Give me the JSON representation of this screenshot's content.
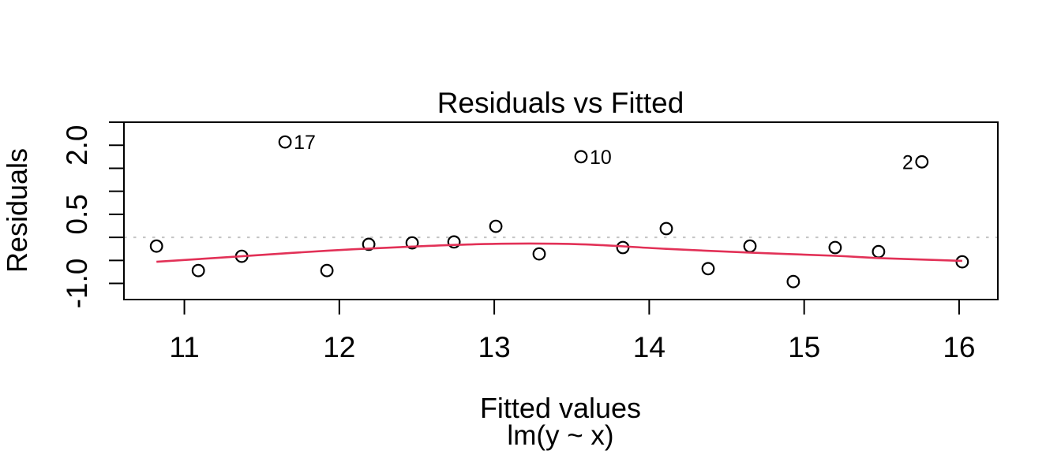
{
  "chart_data": {
    "type": "scatter",
    "title": "Residuals vs Fitted",
    "xlabel": "Fitted values",
    "model_label": "lm(y ~ x)",
    "ylabel": "Residuals",
    "xlim": [
      10.61,
      16.25
    ],
    "ylim": [
      -1.35,
      2.5
    ],
    "grid": false,
    "x_ticks": {
      "values": [
        11,
        12,
        13,
        14,
        15,
        16
      ],
      "labels": [
        "11",
        "12",
        "13",
        "14",
        "15",
        "16"
      ]
    },
    "y_ticks": {
      "values": [
        -1.0,
        -0.5,
        0.0,
        0.5,
        1.0,
        1.5,
        2.0,
        2.5
      ],
      "labels": [
        "-1.0",
        "",
        "",
        "0.5",
        "",
        "",
        "2.0",
        ""
      ]
    },
    "reference_line": {
      "y": 0,
      "style": "dotted",
      "color": "#c3c3c3"
    },
    "points": {
      "x": [
        10.82,
        11.09,
        11.37,
        11.65,
        11.92,
        12.19,
        12.47,
        12.74,
        13.01,
        13.29,
        13.56,
        13.83,
        14.11,
        14.38,
        14.65,
        14.93,
        15.2,
        15.48,
        15.76,
        16.02
      ],
      "y": [
        -0.19,
        -0.72,
        -0.41,
        2.07,
        -0.72,
        -0.15,
        -0.12,
        -0.1,
        0.24,
        -0.36,
        1.75,
        -0.22,
        0.19,
        -0.68,
        -0.19,
        -0.96,
        -0.22,
        -0.31,
        1.64,
        -0.53
      ]
    },
    "point_labels": [
      {
        "index": 3,
        "text": "17",
        "side": "right"
      },
      {
        "index": 10,
        "text": "10",
        "side": "right"
      },
      {
        "index": 18,
        "text": "2",
        "side": "left"
      }
    ],
    "smooth_line": {
      "color": "#e23157",
      "x": [
        10.82,
        11.37,
        11.92,
        12.47,
        13.01,
        13.56,
        14.11,
        14.65,
        15.2,
        15.48,
        16.02
      ],
      "y": [
        -0.53,
        -0.41,
        -0.29,
        -0.2,
        -0.14,
        -0.15,
        -0.25,
        -0.33,
        -0.4,
        -0.45,
        -0.51
      ]
    },
    "point_color": "#000000",
    "axis_color": "#000000",
    "background": "#ffffff"
  }
}
